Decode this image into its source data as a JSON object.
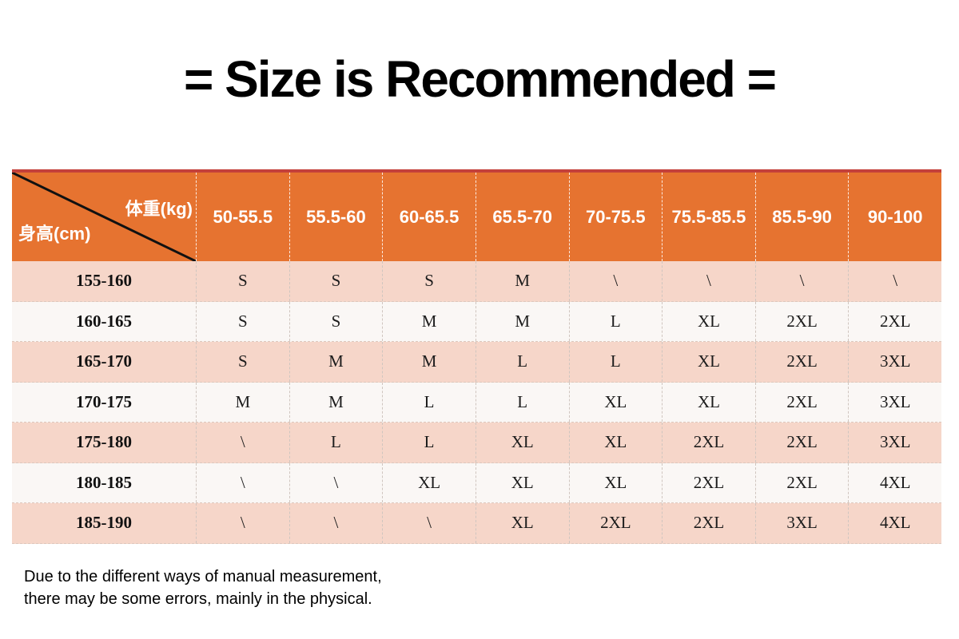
{
  "title": "= Size is Recommended =",
  "table": {
    "corner": {
      "weight_label": "体重(kg)",
      "height_label": "身高(cm)"
    },
    "columns": [
      "50-55.5",
      "55.5-60",
      "60-65.5",
      "65.5-70",
      "70-75.5",
      "75.5-85.5",
      "85.5-90",
      "90-100"
    ],
    "rows": [
      {
        "height_range": "155-160",
        "sizes": [
          "S",
          "S",
          "S",
          "M",
          "\\",
          "\\",
          "\\",
          "\\"
        ]
      },
      {
        "height_range": "160-165",
        "sizes": [
          "S",
          "S",
          "M",
          "M",
          "L",
          "XL",
          "2XL",
          "2XL"
        ]
      },
      {
        "height_range": "165-170",
        "sizes": [
          "S",
          "M",
          "M",
          "L",
          "L",
          "XL",
          "2XL",
          "3XL"
        ]
      },
      {
        "height_range": "170-175",
        "sizes": [
          "M",
          "M",
          "L",
          "L",
          "XL",
          "XL",
          "2XL",
          "3XL"
        ]
      },
      {
        "height_range": "175-180",
        "sizes": [
          "\\",
          "L",
          "L",
          "XL",
          "XL",
          "2XL",
          "2XL",
          "3XL"
        ]
      },
      {
        "height_range": "180-185",
        "sizes": [
          "\\",
          "\\",
          "XL",
          "XL",
          "XL",
          "2XL",
          "2XL",
          "4XL"
        ]
      },
      {
        "height_range": "185-190",
        "sizes": [
          "\\",
          "\\",
          "\\",
          "XL",
          "2XL",
          "2XL",
          "3XL",
          "4XL"
        ]
      }
    ]
  },
  "footer": {
    "line1": "Due to the different ways of manual measurement,",
    "line2": "there may be some errors, mainly in the physical."
  },
  "colors": {
    "header_orange": "#e67330",
    "accent_red": "#c4403a",
    "row_pink": "#f6d6c9",
    "row_offwhite": "#faf7f5",
    "title_black": "#000000"
  },
  "chart_data": {
    "type": "table",
    "title": "= Size is Recommended =",
    "column_axis_label": "体重(kg)",
    "row_axis_label": "身高(cm)",
    "columns": [
      "50-55.5",
      "55.5-60",
      "60-65.5",
      "65.5-70",
      "70-75.5",
      "75.5-85.5",
      "85.5-90",
      "90-100"
    ],
    "row_labels": [
      "155-160",
      "160-165",
      "165-170",
      "170-175",
      "175-180",
      "180-185",
      "185-190"
    ],
    "cells": [
      [
        "S",
        "S",
        "S",
        "M",
        "\\",
        "\\",
        "\\",
        "\\"
      ],
      [
        "S",
        "S",
        "M",
        "M",
        "L",
        "XL",
        "2XL",
        "2XL"
      ],
      [
        "S",
        "M",
        "M",
        "L",
        "L",
        "XL",
        "2XL",
        "3XL"
      ],
      [
        "M",
        "M",
        "L",
        "L",
        "XL",
        "XL",
        "2XL",
        "3XL"
      ],
      [
        "\\",
        "L",
        "L",
        "XL",
        "XL",
        "2XL",
        "2XL",
        "3XL"
      ],
      [
        "\\",
        "\\",
        "XL",
        "XL",
        "XL",
        "2XL",
        "2XL",
        "4XL"
      ],
      [
        "\\",
        "\\",
        "\\",
        "XL",
        "2XL",
        "2XL",
        "3XL",
        "4XL"
      ]
    ]
  }
}
